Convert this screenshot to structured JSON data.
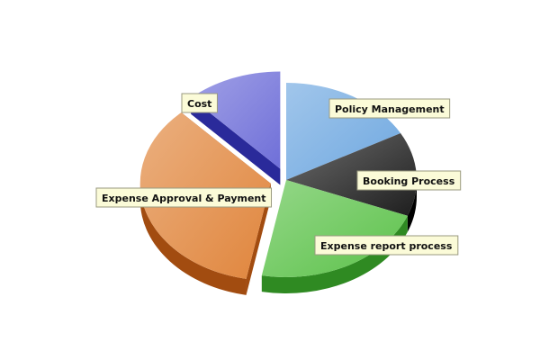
{
  "chart_data": {
    "type": "pie",
    "title": "",
    "slices": [
      {
        "label": "Policy Management",
        "value": 17,
        "color": "#6fa8e0",
        "side": "#2f5f98"
      },
      {
        "label": "Booking Process",
        "value": 14,
        "color": "#1e1e1e",
        "side": "#000000"
      },
      {
        "label": "Expense report process",
        "value": 22,
        "color": "#5cc24a",
        "side": "#2f8a22"
      },
      {
        "label": "Expense Approval & Payment",
        "value": 35,
        "color": "#e0853c",
        "side": "#a24c10",
        "exploded": true
      },
      {
        "label": "Cost",
        "value": 12,
        "color": "#6f6fd8",
        "side": "#2a2a9a",
        "exploded": true
      }
    ]
  }
}
